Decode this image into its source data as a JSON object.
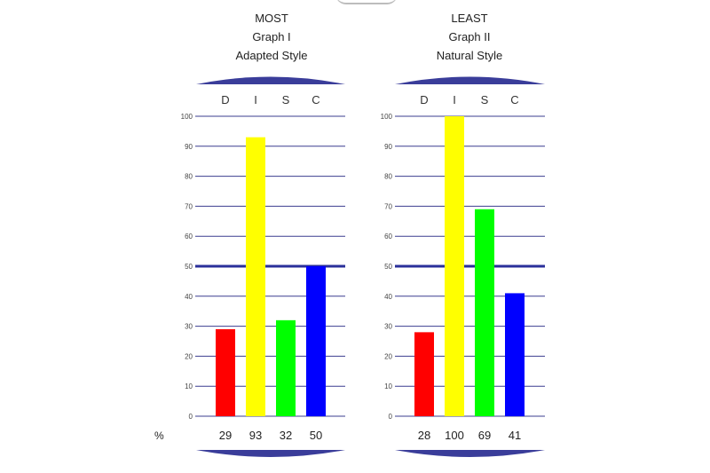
{
  "chart_data": [
    {
      "type": "bar",
      "title_lines": [
        "MOST",
        "Graph I",
        "Adapted Style"
      ],
      "categories": [
        "D",
        "I",
        "S",
        "C"
      ],
      "values": [
        29,
        93,
        32,
        50
      ],
      "value_labels": [
        "29",
        "93",
        "32",
        "50"
      ],
      "colors": [
        "#ff0000",
        "#ffff00",
        "#00ff00",
        "#0000ff"
      ],
      "ylim": [
        0,
        100
      ],
      "yticks": [
        "0",
        "10",
        "20",
        "30",
        "40",
        "50",
        "60",
        "70",
        "80",
        "90",
        "100"
      ],
      "highlight_line": 50,
      "grid": true
    },
    {
      "type": "bar",
      "title_lines": [
        "LEAST",
        "Graph II",
        "Natural Style"
      ],
      "categories": [
        "D",
        "I",
        "S",
        "C"
      ],
      "values": [
        28,
        100,
        69,
        41
      ],
      "value_labels": [
        "28",
        "100",
        "69",
        "41"
      ],
      "colors": [
        "#ff0000",
        "#ffff00",
        "#00ff00",
        "#0000ff"
      ],
      "ylim": [
        0,
        100
      ],
      "yticks": [
        "0",
        "10",
        "20",
        "30",
        "40",
        "50",
        "60",
        "70",
        "80",
        "90",
        "100"
      ],
      "highlight_line": 50,
      "grid": true
    }
  ],
  "percent_label": "%",
  "colors": {
    "grid": "#3b3d8f",
    "highlight": "#2a2f9a",
    "cap": "#3a3d9a"
  }
}
